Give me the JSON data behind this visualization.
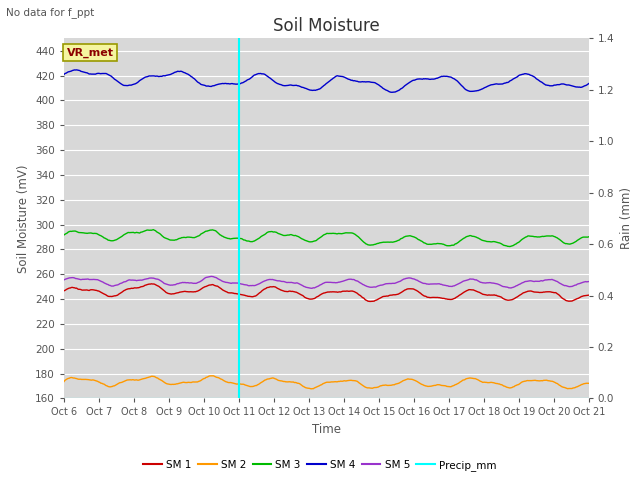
{
  "title": "Soil Moisture",
  "title_fontsize": 12,
  "xlabel": "Time",
  "ylabel_left": "Soil Moisture (mV)",
  "ylabel_right": "Rain (mm)",
  "top_left_text": "No data for f_ppt",
  "vr_met_label": "VR_met",
  "ylim_left": [
    160,
    450
  ],
  "ylim_right": [
    0.0,
    1.4
  ],
  "yticks_left": [
    160,
    180,
    200,
    220,
    240,
    260,
    280,
    300,
    320,
    340,
    360,
    380,
    400,
    420,
    440
  ],
  "yticks_right": [
    0.0,
    0.2,
    0.4,
    0.6,
    0.8,
    1.0,
    1.2,
    1.4
  ],
  "xtick_labels": [
    "Oct 6",
    "Oct 7",
    "Oct 8",
    "Oct 9",
    "Oct 10",
    "Oct 11",
    "Oct 12",
    "Oct 13",
    "Oct 14",
    "Oct 15",
    "Oct 16",
    "Oct 17",
    "Oct 18",
    "Oct 19",
    "Oct 20",
    "Oct 21"
  ],
  "num_points": 500,
  "sm1_base": 246,
  "sm1_amp": 3.5,
  "sm1_freq": 8,
  "sm1_drift": -3,
  "sm2_base": 173,
  "sm2_amp": 3,
  "sm2_freq": 8,
  "sm2_drift": -1,
  "sm3_base": 291,
  "sm3_amp": 3.5,
  "sm3_freq": 8,
  "sm3_drift": -1,
  "sm4_base": 420,
  "sm4_amp": 5,
  "sm4_freq": 6,
  "sm4_drift": -5,
  "sm5_base": 255,
  "sm5_amp": 2.5,
  "sm5_freq": 8,
  "sm5_drift": -1,
  "vline_day": 5,
  "vline_color": "cyan",
  "sm1_color": "#cc0000",
  "sm2_color": "#ff9900",
  "sm3_color": "#00bb00",
  "sm4_color": "#0000cc",
  "sm5_color": "#9933cc",
  "precip_color": "cyan",
  "bg_color": "#d8d8d8",
  "grid_color": "white",
  "legend_labels": [
    "SM 1",
    "SM 2",
    "SM 3",
    "SM 4",
    "SM 5",
    "Precip_mm"
  ],
  "legend_colors": [
    "#cc0000",
    "#ff9900",
    "#00bb00",
    "#0000cc",
    "#9933cc",
    "cyan"
  ],
  "tick_color": "#555555",
  "label_color": "#555555"
}
